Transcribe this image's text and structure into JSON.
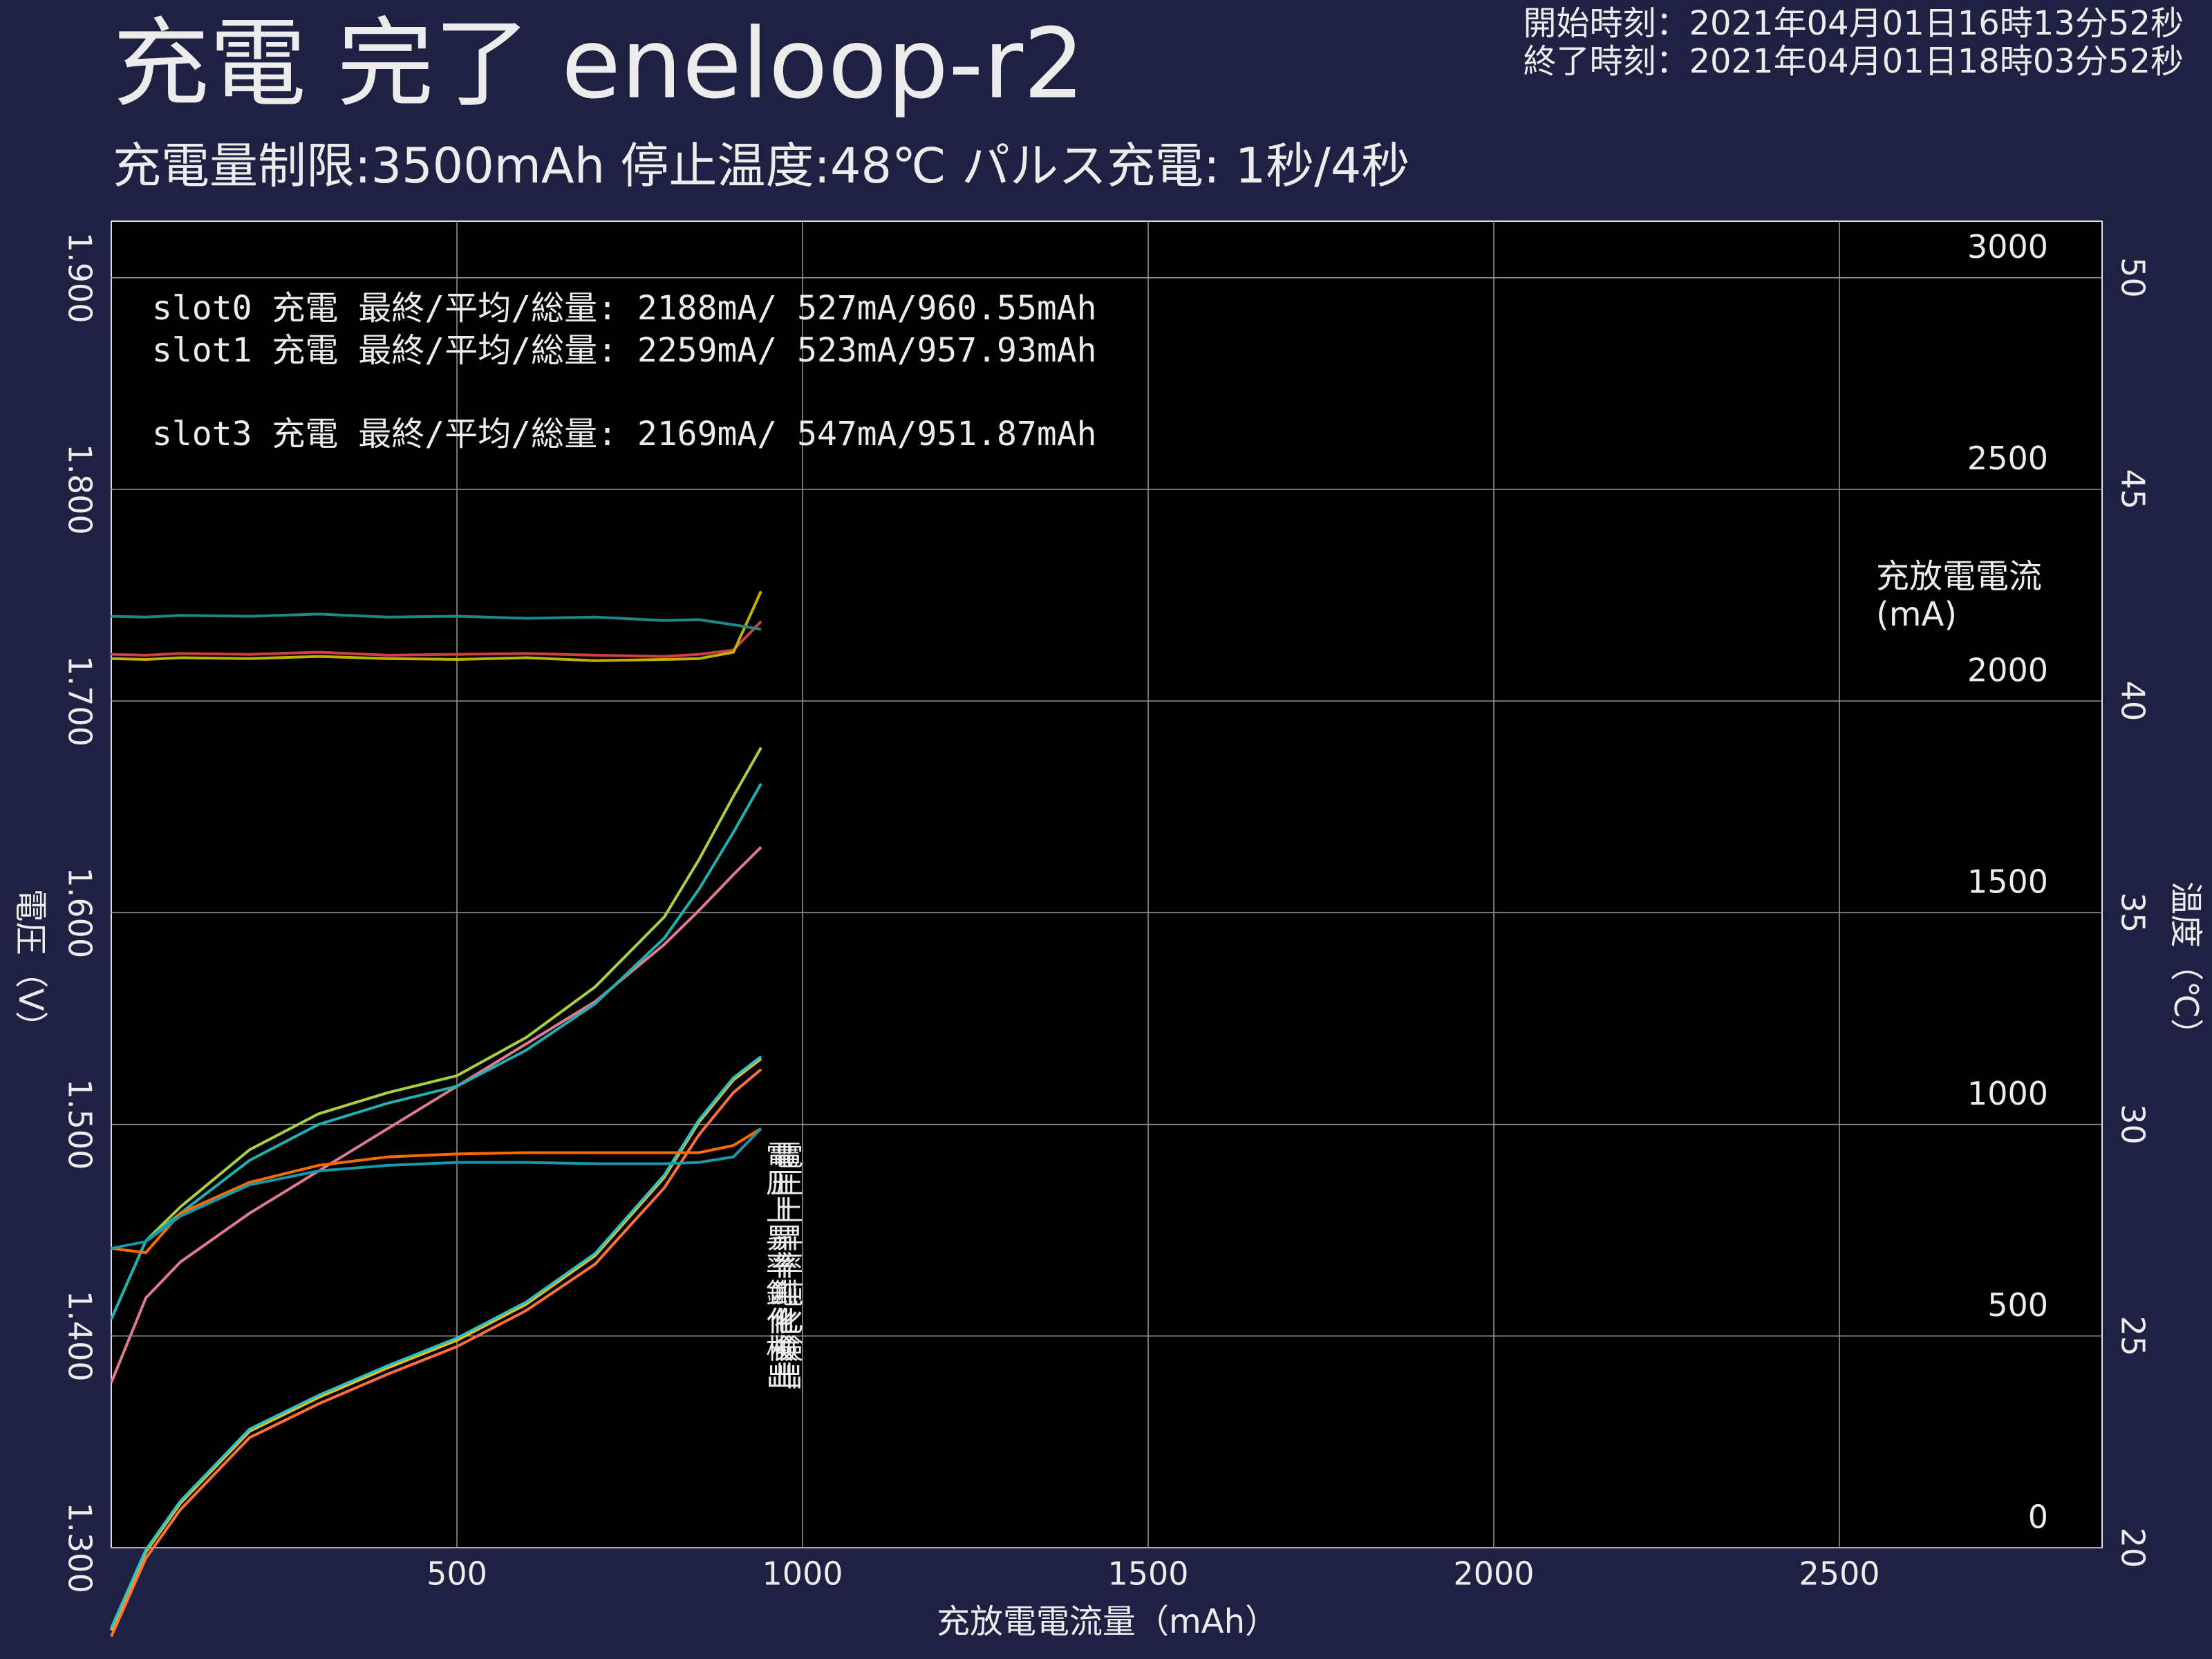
{
  "chart_data": {
    "type": "line",
    "title": "充電 完了 eneloop-r2",
    "subtitle": "充電量制限:3500mAh 停止温度:48℃ パルス充電: 1秒/4秒",
    "start_time": "開始時刻：2021年04月01日16時13分52秒",
    "end_time": "終了時刻：2021年04月01日18時03分52秒",
    "x_label": "充放電電流量（mAh）",
    "y_label": "電圧（V）",
    "y2_label": "充放電電流",
    "y2_unit": "(mA)",
    "y3_label": "温度（℃）",
    "annotations": [
      {
        "text": "slot0  充電 最終/平均/総量: 2188mA/ 527mA/960.55mAh",
        "color": "#ff7a7a"
      },
      {
        "text": "slot1  充電 最終/平均/総量: 2259mA/ 523mA/957.93mAh",
        "color": "#ffff00"
      },
      {
        "text": "slot3  充電 最終/平均/総量: 2169mA/ 547mA/951.87mAh",
        "color": "#00ffff"
      }
    ],
    "event_label": "電圧上昇率鈍化検出",
    "event_colors": [
      "#ff7a7a",
      "#ffff00",
      "#00ffff"
    ],
    "xlim": [
      0,
      2880
    ],
    "xticks": [
      500,
      1000,
      1500,
      2000,
      2500
    ],
    "ylim": [
      1.3,
      1.9267
    ],
    "yticks": [
      {
        "value": 1.3,
        "label": "1.300"
      },
      {
        "value": 1.4,
        "label": "1.400"
      },
      {
        "value": 1.5,
        "label": "1.500"
      },
      {
        "value": 1.6,
        "label": "1.600"
      },
      {
        "value": 1.7,
        "label": "1.700"
      },
      {
        "value": 1.8,
        "label": "1.800"
      },
      {
        "value": 1.9,
        "label": "1.900"
      }
    ],
    "y2lim": [
      0,
      3133
    ],
    "y2ticks": [
      0,
      500,
      1000,
      1500,
      2000,
      2500,
      3000
    ],
    "y3lim": [
      20,
      51.33
    ],
    "y3ticks": [
      20,
      25,
      30,
      35,
      40,
      45,
      50
    ],
    "grid": true,
    "x": [
      0,
      50,
      100,
      200,
      300,
      400,
      500,
      600,
      700,
      800,
      850,
      900,
      940
    ],
    "series": [
      {
        "color": "#e07a90",
        "axis": "y",
        "values": [
          1.378,
          1.418,
          1.435,
          1.458,
          1.478,
          1.498,
          1.518,
          1.538,
          1.558,
          1.585,
          1.601,
          1.618,
          1.631
        ]
      },
      {
        "color": "#a8d040",
        "axis": "y",
        "values": [
          1.408,
          1.445,
          1.461,
          1.488,
          1.505,
          1.515,
          1.523,
          1.541,
          1.565,
          1.598,
          1.625,
          1.655,
          1.678
        ]
      },
      {
        "color": "#20b0b0",
        "axis": "y",
        "values": [
          1.408,
          1.445,
          1.458,
          1.483,
          1.5,
          1.51,
          1.518,
          1.535,
          1.557,
          1.588,
          1.611,
          1.638,
          1.661
        ]
      },
      {
        "color": "#ffc000",
        "axis": "y",
        "values": [
          1.261,
          1.298,
          1.321,
          1.355,
          1.371,
          1.385,
          1.398,
          1.415,
          1.438,
          1.475,
          1.501,
          1.521,
          1.531
        ]
      },
      {
        "color": "#ff7040",
        "axis": "y",
        "values": [
          1.258,
          1.295,
          1.318,
          1.352,
          1.368,
          1.382,
          1.395,
          1.412,
          1.434,
          1.47,
          1.495,
          1.515,
          1.526
        ]
      },
      {
        "color": "#30c0c0",
        "axis": "y",
        "values": [
          1.262,
          1.299,
          1.322,
          1.356,
          1.372,
          1.386,
          1.399,
          1.416,
          1.439,
          1.476,
          1.502,
          1.522,
          1.532
        ]
      },
      {
        "color": "#ff6a00",
        "axis": "y3",
        "values": [
          27.07,
          26.97,
          27.9,
          28.63,
          29.03,
          29.23,
          29.3,
          29.33,
          29.33,
          29.33,
          29.33,
          29.5,
          29.9
        ]
      },
      {
        "color": "#1898a8",
        "axis": "y3",
        "values": [
          27.07,
          27.23,
          27.83,
          28.57,
          28.9,
          29.03,
          29.1,
          29.1,
          29.07,
          29.07,
          29.1,
          29.23,
          29.9
        ]
      },
      {
        "color": "#d04040",
        "axis": "y2",
        "values": [
          2110,
          2108,
          2112,
          2110,
          2115,
          2108,
          2110,
          2112,
          2108,
          2105,
          2110,
          2120,
          2188
        ]
      },
      {
        "color": "#c0b000",
        "axis": "y2",
        "values": [
          2100,
          2098,
          2102,
          2100,
          2105,
          2100,
          2098,
          2102,
          2095,
          2098,
          2100,
          2115,
          2259
        ]
      },
      {
        "color": "#208888",
        "axis": "y2",
        "values": [
          2200,
          2198,
          2202,
          2200,
          2205,
          2198,
          2200,
          2195,
          2198,
          2190,
          2192,
          2180,
          2169
        ]
      }
    ]
  }
}
